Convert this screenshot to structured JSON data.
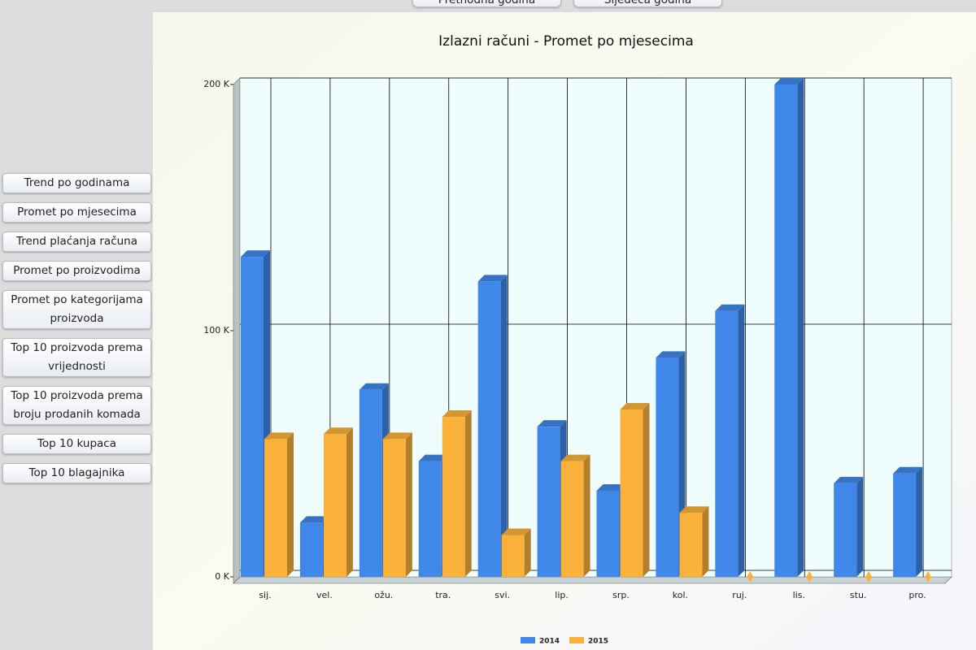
{
  "navigation": {
    "buttons": [
      "Prethodna godina",
      "Sljedeća godina"
    ]
  },
  "sidebar": {
    "buttons": [
      "Trend po godinama",
      "Promet po mjesecima",
      "Trend plaćanja računa",
      "Promet po proizvodima",
      "Promet po kategorijama proizvoda",
      "Top 10 proizvoda prema vrijednosti",
      "Top 10 proizvoda prema broju prodanih komada",
      "Top 10 kupaca",
      "Top 10 blagajnika"
    ]
  },
  "chart_data": {
    "type": "bar",
    "title": "Izlazni računi - Promet po mjesecima",
    "categories": [
      "sij.",
      "vel.",
      "ožu.",
      "tra.",
      "svi.",
      "lip.",
      "srp.",
      "kol.",
      "ruj.",
      "lis.",
      "stu.",
      "pro."
    ],
    "series": [
      {
        "name": "2014",
        "color": "#3f87e8",
        "values": [
          130000,
          22000,
          76000,
          47000,
          120000,
          61000,
          35000,
          89000,
          108000,
          200000,
          38000,
          42000
        ]
      },
      {
        "name": "2015",
        "color": "#f9b13a",
        "values": [
          56000,
          58000,
          56000,
          65000,
          17000,
          47000,
          68000,
          26000,
          0,
          0,
          0,
          0
        ]
      }
    ],
    "ylim": [
      0,
      200000
    ],
    "yticks": [
      {
        "value": 0,
        "label": "0 K"
      },
      {
        "value": 100000,
        "label": "100 K"
      },
      {
        "value": 200000,
        "label": "200 K"
      }
    ],
    "grid": true,
    "legend": "bottom"
  }
}
